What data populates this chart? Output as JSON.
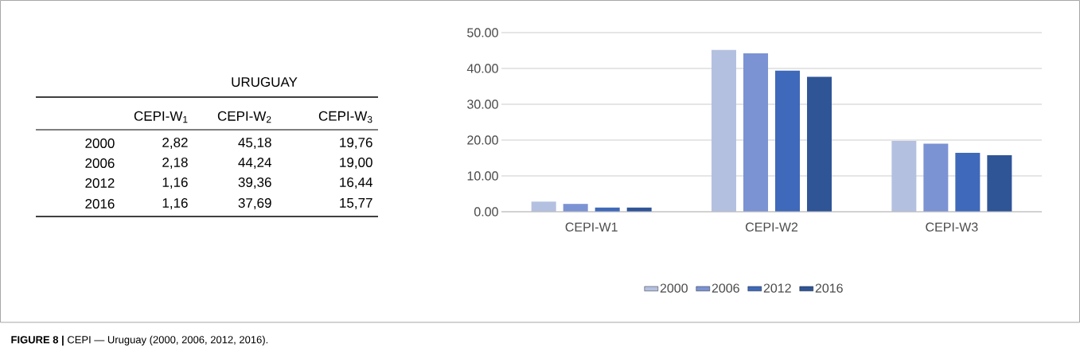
{
  "chart_data": {
    "type": "bar",
    "subtitle": "URUGUAY",
    "categories": [
      "CEPI-W1",
      "CEPI-W2",
      "CEPI-W3"
    ],
    "series": [
      {
        "name": "2000",
        "color": "#b4c0e0",
        "values": [
          2.82,
          45.18,
          19.76
        ]
      },
      {
        "name": "2006",
        "color": "#7b93d3",
        "values": [
          2.18,
          44.24,
          19.0
        ]
      },
      {
        "name": "2012",
        "color": "#3f69ba",
        "values": [
          1.16,
          39.36,
          16.44
        ]
      },
      {
        "name": "2016",
        "color": "#2f5597",
        "values": [
          1.16,
          37.69,
          15.77
        ]
      }
    ],
    "ylim": [
      0,
      50
    ],
    "yticks": [
      {
        "value": 0,
        "label": "0.00"
      },
      {
        "value": 10,
        "label": "10.00"
      },
      {
        "value": 20,
        "label": "20.00"
      },
      {
        "value": 30,
        "label": "30.00"
      },
      {
        "value": 40,
        "label": "40.00"
      },
      {
        "value": 50,
        "label": "50.00"
      }
    ],
    "grid": "y",
    "legend": "bottom",
    "annotations": [
      "CEPI-W$_{1}$",
      "CEPI-W$_{2}$",
      "CEPI-W$_{3}$",
      "2,82",
      "45,18",
      "19,76",
      "2,18",
      "44,24",
      "19,00",
      "1,16",
      "39,36",
      "16,44",
      "1,16",
      "37,69",
      "15,77",
      "**FIGURE 8 |** CEPI — Uruguay (2000, 2006, 2012, 2016)."
    ]
  }
}
